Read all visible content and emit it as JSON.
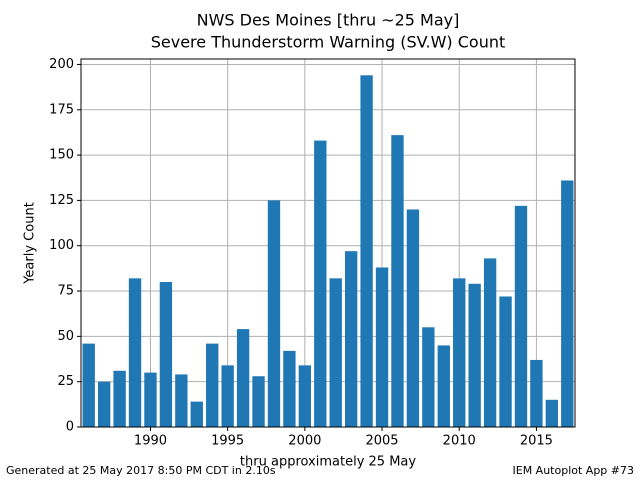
{
  "chart_data": {
    "type": "bar",
    "title": "NWS Des Moines [thru ~25 May]",
    "subtitle": "Severe Thunderstorm Warning (SV.W) Count",
    "x_label": "thru approximately 25 May",
    "y_label": "Yearly Count",
    "footer_left": "Generated at 25 May 2017 8:50 PM CDT in 2.10s",
    "footer_right": "IEM Autoplot App #73",
    "x": [
      1986,
      1987,
      1988,
      1989,
      1990,
      1991,
      1992,
      1993,
      1994,
      1995,
      1996,
      1997,
      1998,
      1999,
      2000,
      2001,
      2002,
      2003,
      2004,
      2005,
      2006,
      2007,
      2008,
      2009,
      2010,
      2011,
      2012,
      2013,
      2014,
      2015,
      2016,
      2017
    ],
    "values": [
      46,
      25,
      31,
      82,
      30,
      80,
      29,
      14,
      46,
      34,
      54,
      28,
      125,
      42,
      34,
      158,
      82,
      97,
      194,
      88,
      161,
      120,
      55,
      45,
      82,
      79,
      93,
      72,
      122,
      37,
      15,
      136
    ],
    "color": "#1f77b4",
    "xlim": [
      1985.5,
      2017.5
    ],
    "xticks": [
      1990,
      1995,
      2000,
      2005,
      2010,
      2015
    ],
    "ylim": [
      0,
      203
    ],
    "yticks": [
      0,
      25,
      50,
      75,
      100,
      125,
      150,
      175,
      200
    ],
    "grid": true
  }
}
